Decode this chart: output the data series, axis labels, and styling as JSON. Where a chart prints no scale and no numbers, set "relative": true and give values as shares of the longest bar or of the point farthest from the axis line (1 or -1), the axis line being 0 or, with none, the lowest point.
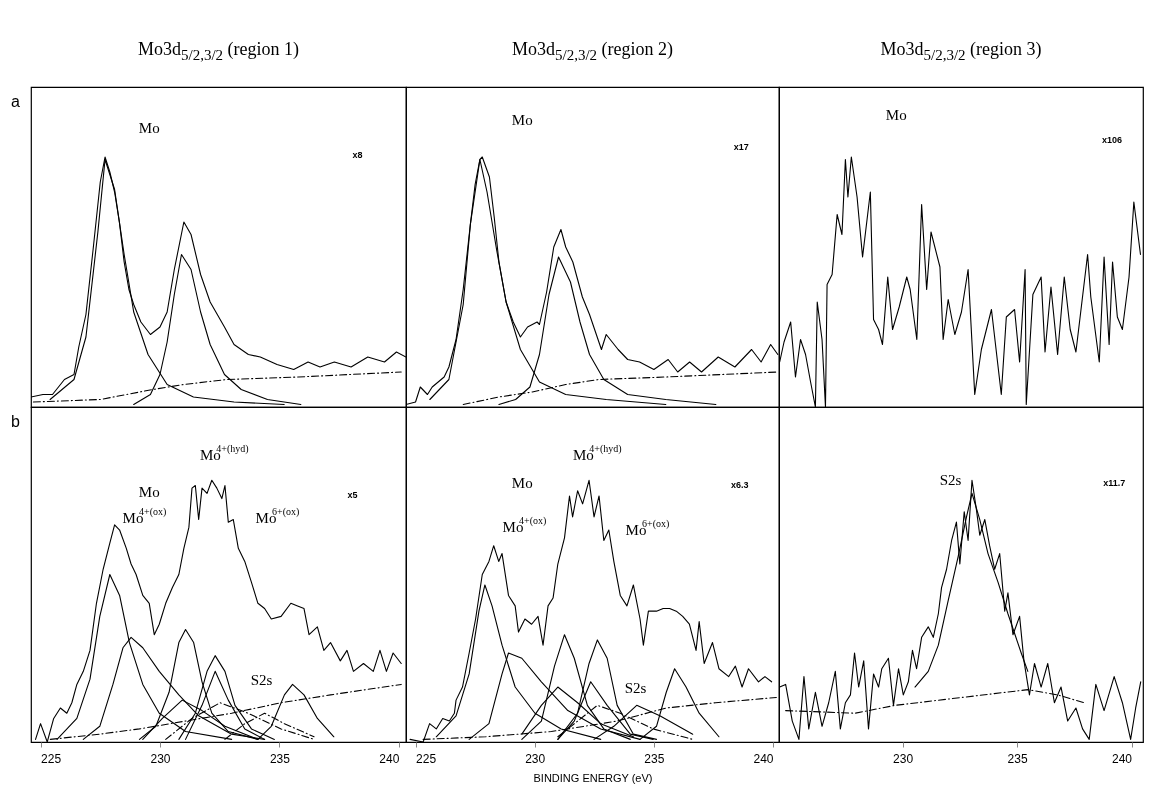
{
  "chart_data": [
    {
      "type": "line",
      "title": "Mo3d$_{5/2,3/2}$ (region 1)",
      "relative": true,
      "xlim": [
        224.6,
        240.3
      ],
      "tick_labels": false,
      "annotations": [
        "a",
        "Mo",
        "x8"
      ],
      "series": [
        {
          "color": "#000000",
          "line_style": "solid",
          "x": [
            224.6,
            225.1,
            225.5,
            226.0,
            226.4,
            226.6,
            226.9,
            227.2,
            227.5,
            227.7,
            227.9,
            228.1,
            228.3,
            228.5,
            228.7,
            228.9,
            229.2,
            229.6,
            230.0,
            230.3,
            230.6,
            231.0,
            231.3,
            231.7,
            232.1,
            232.7,
            233.1,
            233.7,
            234.2,
            234.9,
            235.6,
            236.2,
            236.7,
            237.3,
            238.0,
            238.7,
            239.4,
            239.9,
            240.3
          ],
          "values": [
            0.04,
            0.05,
            0.05,
            0.11,
            0.13,
            0.24,
            0.37,
            0.63,
            0.9,
            1,
            0.94,
            0.86,
            0.74,
            0.58,
            0.47,
            0.41,
            0.34,
            0.29,
            0.32,
            0.38,
            0.55,
            0.74,
            0.69,
            0.53,
            0.42,
            0.32,
            0.25,
            0.21,
            0.2,
            0.17,
            0.15,
            0.18,
            0.16,
            0.18,
            0.16,
            0.2,
            0.18,
            0.22,
            0.2
          ]
        },
        {
          "color": "#000000",
          "line_style": "solid",
          "x": [
            225.4,
            226.4,
            226.9,
            227.4,
            227.7,
            228.1,
            228.5,
            228.9,
            229.5,
            230.3,
            231.4,
            233.1,
            235.2
          ],
          "values": [
            0.03,
            0.11,
            0.28,
            0.7,
            0.99,
            0.87,
            0.61,
            0.38,
            0.21,
            0.09,
            0.04,
            0.02,
            0.01
          ]
        },
        {
          "color": "#000000",
          "line_style": "solid",
          "x": [
            228.9,
            229.6,
            230.0,
            230.3,
            230.6,
            230.9,
            231.3,
            231.7,
            232.1,
            232.7,
            233.4,
            234.5,
            235.9
          ],
          "values": [
            0.01,
            0.05,
            0.13,
            0.26,
            0.45,
            0.61,
            0.55,
            0.38,
            0.25,
            0.13,
            0.07,
            0.03,
            0.01
          ]
        },
        {
          "color": "#000000",
          "line_style": "dashed",
          "x": [
            224.7,
            227.5,
            229.7,
            231.0,
            232.8,
            235.8,
            240.1
          ],
          "values": [
            0.02,
            0.03,
            0.07,
            0.09,
            0.11,
            0.12,
            0.14
          ]
        }
      ]
    },
    {
      "type": "line",
      "title": "Mo3d$_{5/2,3/2}$ (region 2)",
      "relative": true,
      "xlim": [
        224.6,
        240.25
      ],
      "tick_labels": false,
      "annotations": [
        "Mo",
        "x17"
      ],
      "series": [
        {
          "color": "#000000",
          "line_style": "solid",
          "x": [
            224.6,
            225.0,
            225.2,
            225.5,
            225.7,
            226.2,
            226.4,
            226.7,
            227.0,
            227.3,
            227.5,
            227.7,
            227.8,
            228.1,
            228.3,
            228.5,
            228.8,
            229.1,
            229.4,
            229.7,
            230.1,
            230.2,
            230.5,
            230.8,
            231.1,
            231.3,
            231.6,
            232.0,
            232.3,
            232.8,
            233.0,
            233.5,
            233.9,
            234.4,
            235.0,
            235.6,
            236.0,
            236.5,
            237.0,
            237.7,
            238.4,
            239.1,
            239.5,
            239.9,
            240.2
          ],
          "values": [
            0.01,
            0.02,
            0.08,
            0.05,
            0.08,
            0.12,
            0.16,
            0.27,
            0.47,
            0.73,
            0.89,
            0.99,
            1,
            0.92,
            0.76,
            0.58,
            0.42,
            0.34,
            0.28,
            0.32,
            0.34,
            0.33,
            0.46,
            0.64,
            0.71,
            0.64,
            0.58,
            0.44,
            0.37,
            0.23,
            0.29,
            0.23,
            0.19,
            0.18,
            0.15,
            0.19,
            0.14,
            0.18,
            0.14,
            0.2,
            0.16,
            0.23,
            0.18,
            0.25,
            0.21
          ]
        },
        {
          "color": "#000000",
          "line_style": "solid",
          "x": [
            225.6,
            226.4,
            227.0,
            227.3,
            227.7,
            228.0,
            228.4,
            228.8,
            229.4,
            230.2,
            231.3,
            233.0,
            235.5
          ],
          "values": [
            0.03,
            0.11,
            0.41,
            0.73,
            0.99,
            0.86,
            0.63,
            0.42,
            0.23,
            0.1,
            0.05,
            0.03,
            0.01
          ]
        },
        {
          "color": "#000000",
          "line_style": "solid",
          "x": [
            228.5,
            229.2,
            229.8,
            230.2,
            230.6,
            231.0,
            231.5,
            231.9,
            232.3,
            232.9,
            233.9,
            235.5,
            237.6
          ],
          "values": [
            0.01,
            0.03,
            0.08,
            0.21,
            0.45,
            0.6,
            0.5,
            0.34,
            0.21,
            0.11,
            0.05,
            0.03,
            0.01
          ]
        },
        {
          "color": "#000000",
          "line_style": "dashed",
          "x": [
            227.0,
            228.5,
            229.9,
            231.3,
            232.7,
            235.5,
            240.2
          ],
          "values": [
            0.01,
            0.04,
            0.06,
            0.09,
            0.11,
            0.12,
            0.14
          ]
        }
      ]
    },
    {
      "type": "line",
      "title": "Mo3d$_{5/2,3/2}$ (region 3)",
      "relative": true,
      "xlim": [
        224.6,
        240.5
      ],
      "tick_labels": false,
      "annotations": [
        "Mo",
        "x106"
      ],
      "series": [
        {
          "color": "#000000",
          "line_style": "solid",
          "x": [
            224.63,
            224.82,
            225.11,
            225.32,
            225.54,
            225.76,
            225.98,
            226.19,
            226.27,
            226.48,
            226.63,
            226.7,
            226.92,
            227.14,
            227.35,
            227.5,
            227.61,
            227.76,
            228.01,
            228.25,
            228.59,
            228.73,
            228.95,
            229.12,
            229.35,
            229.56,
            229.85,
            230.18,
            230.33,
            230.62,
            230.83,
            231.05,
            231.24,
            231.63,
            231.77,
            231.99,
            232.28,
            232.57,
            232.86,
            233.15,
            233.44,
            233.88,
            234.31,
            234.53,
            234.89,
            235.11,
            235.35,
            235.4,
            235.69,
            236.05,
            236.22,
            236.48,
            236.77,
            237.06,
            237.32,
            237.57,
            238.08,
            238.22,
            238.59,
            238.8,
            239.02,
            239.17,
            239.38,
            239.6,
            239.89,
            240.1,
            240.39
          ],
          "values": [
            0.18,
            0.26,
            0.34,
            0.12,
            0.27,
            0.21,
            0.1,
            0,
            0.42,
            0.27,
            0,
            0.49,
            0.53,
            0.77,
            0.69,
            0.99,
            0.84,
            1,
            0.84,
            0.6,
            0.86,
            0.35,
            0.31,
            0.25,
            0.52,
            0.31,
            0.4,
            0.52,
            0.47,
            0.27,
            0.81,
            0.47,
            0.7,
            0.56,
            0.27,
            0.43,
            0.29,
            0.38,
            0.55,
            0.05,
            0.23,
            0.39,
            0.05,
            0.36,
            0.39,
            0.18,
            0.55,
            0.01,
            0.45,
            0.52,
            0.22,
            0.48,
            0.21,
            0.52,
            0.31,
            0.22,
            0.61,
            0.44,
            0.18,
            0.6,
            0.25,
            0.58,
            0.36,
            0.31,
            0.52,
            0.82,
            0.61
          ]
        }
      ]
    },
    {
      "type": "line",
      "relative": true,
      "xlim": [
        224.6,
        240.3
      ],
      "xticks": [
        225,
        230,
        235,
        240
      ],
      "tick_labels": "x",
      "annotations": [
        "b",
        "Mo$^{4+(hyd)}$",
        "Mo",
        "Mo$^{4+(ox)}$",
        "Mo$^{6+(ox)}$",
        "S2s",
        "x5"
      ],
      "series": [
        {
          "color": "#000000",
          "line_style": "solid",
          "x": [
            224.79,
            225.0,
            225.28,
            225.55,
            225.83,
            226.1,
            226.31,
            226.52,
            226.79,
            227.07,
            227.34,
            227.62,
            227.9,
            228.1,
            228.31,
            228.59,
            228.79,
            229.0,
            229.28,
            229.55,
            229.76,
            229.97,
            230.24,
            230.52,
            230.79,
            231.0,
            231.21,
            231.34,
            231.48,
            231.62,
            231.76,
            231.97,
            232.17,
            232.38,
            232.59,
            232.72,
            232.86,
            233.07,
            233.28,
            233.55,
            233.83,
            234.1,
            234.38,
            234.66,
            235.07,
            235.48,
            235.76,
            236.03,
            236.24,
            236.59,
            236.86,
            237.14,
            237.55,
            237.83,
            238.1,
            238.52,
            238.93,
            239.21,
            239.48,
            239.76,
            240.1
          ],
          "values": [
            0.01,
            0.07,
            0,
            0.09,
            0.13,
            0.11,
            0.15,
            0.22,
            0.27,
            0.35,
            0.53,
            0.66,
            0.76,
            0.83,
            0.81,
            0.74,
            0.68,
            0.64,
            0.56,
            0.53,
            0.41,
            0.45,
            0.53,
            0.59,
            0.64,
            0.74,
            0.82,
            0.97,
            0.98,
            0.85,
            0.97,
            0.95,
            1,
            0.97,
            0.93,
            0.98,
            0.84,
            0.85,
            0.74,
            0.69,
            0.61,
            0.53,
            0.51,
            0.47,
            0.48,
            0.53,
            0.52,
            0.51,
            0.41,
            0.44,
            0.35,
            0.38,
            0.31,
            0.35,
            0.27,
            0.3,
            0.27,
            0.35,
            0.27,
            0.34,
            0.3
          ]
        },
        {
          "color": "#000000",
          "line_style": "solid",
          "x": [
            225.69,
            226.52,
            227.07,
            227.48,
            227.9,
            228.31,
            228.72,
            229.28,
            229.97,
            231.07,
            233.0
          ],
          "values": [
            0.01,
            0.09,
            0.24,
            0.48,
            0.64,
            0.56,
            0.38,
            0.22,
            0.11,
            0.04,
            0.01
          ]
        },
        {
          "color": "#000000",
          "line_style": "solid",
          "x": [
            226.79,
            227.48,
            228.03,
            228.45,
            228.79,
            229.28,
            229.97,
            230.79,
            231.62,
            233.0,
            234.38
          ],
          "values": [
            0.01,
            0.06,
            0.22,
            0.36,
            0.4,
            0.36,
            0.27,
            0.18,
            0.1,
            0.03,
            0.01
          ]
        },
        {
          "color": "#000000",
          "line_style": "solid",
          "x": [
            229.14,
            229.83,
            230.38,
            230.79,
            231.07,
            231.41,
            231.76,
            232.17,
            232.86,
            234.1
          ],
          "values": [
            0.01,
            0.06,
            0.19,
            0.38,
            0.43,
            0.38,
            0.23,
            0.11,
            0.04,
            0.01
          ]
        },
        {
          "color": "#000000",
          "line_style": "solid",
          "x": [
            229.28,
            230.1,
            230.93,
            231.76,
            232.72,
            234.1
          ],
          "values": [
            0.01,
            0.09,
            0.16,
            0.12,
            0.06,
            0.01
          ]
        },
        {
          "color": "#000000",
          "line_style": "solid",
          "x": [
            230.79,
            231.48,
            231.97,
            232.31,
            232.72,
            233.14,
            233.83,
            234.79
          ],
          "values": [
            0.01,
            0.11,
            0.27,
            0.33,
            0.27,
            0.14,
            0.05,
            0.01
          ]
        },
        {
          "color": "#000000",
          "line_style": "solid",
          "x": [
            231.07,
            231.76,
            232.31,
            232.86,
            233.55,
            234.38
          ],
          "values": [
            0.01,
            0.14,
            0.27,
            0.16,
            0.05,
            0.01
          ]
        },
        {
          "color": "#000000",
          "line_style": "dashed",
          "x": [
            230.24,
            231.34,
            232.52,
            233.69,
            235.07,
            236.45
          ],
          "values": [
            0.01,
            0.09,
            0.15,
            0.11,
            0.05,
            0.01
          ]
        },
        {
          "color": "#000000",
          "line_style": "dashed",
          "x": [
            232.72,
            233.55,
            234.38,
            235.21,
            236.45
          ],
          "values": [
            0.01,
            0.07,
            0.11,
            0.07,
            0.02
          ]
        },
        {
          "color": "#000000",
          "line_style": "solid",
          "x": [
            234.1,
            234.66,
            235.21,
            235.55,
            236.03,
            236.59,
            237.28
          ],
          "values": [
            0.01,
            0.06,
            0.18,
            0.22,
            0.18,
            0.09,
            0.02
          ]
        },
        {
          "color": "#000000",
          "line_style": "dashed",
          "x": [
            225.41,
            227.48,
            229.14,
            231.07,
            233.0,
            235.07,
            237.14,
            240.1
          ],
          "values": [
            0.01,
            0.03,
            0.05,
            0.08,
            0.11,
            0.15,
            0.18,
            0.22
          ]
        }
      ]
    },
    {
      "type": "line",
      "relative": true,
      "xlim": [
        224.6,
        240.25
      ],
      "xticks": [
        225,
        230,
        235,
        240
      ],
      "tick_labels": "x",
      "xlabel": "BINDING ENERGY (eV)",
      "annotations": [
        "Mo$^{4+(hyd)}$",
        "Mo",
        "Mo$^{4+(ox)}$",
        "Mo$^{6+(ox)}$",
        "S2s",
        "x6.3"
      ],
      "series": [
        {
          "color": "#000000",
          "line_style": "solid",
          "x": [
            224.77,
            225.32,
            225.59,
            225.87,
            226.14,
            226.42,
            226.63,
            226.7,
            226.97,
            227.25,
            227.52,
            227.8,
            228.08,
            228.28,
            228.49,
            228.63,
            228.9,
            229.18,
            229.32,
            229.59,
            229.87,
            230.14,
            230.35,
            230.56,
            230.77,
            230.97,
            231.25,
            231.46,
            231.59,
            231.8,
            232.01,
            232.28,
            232.49,
            232.7,
            232.9,
            233.11,
            233.32,
            233.59,
            233.87,
            234.14,
            234.42,
            234.56,
            234.77,
            235.11,
            235.39,
            235.66,
            235.94,
            236.21,
            236.49,
            236.77,
            236.9,
            237.11,
            237.46,
            237.73,
            238.14,
            238.42,
            238.7,
            238.97,
            239.39,
            239.66,
            239.94
          ],
          "values": [
            0.01,
            0,
            0.07,
            0.05,
            0.09,
            0.08,
            0.11,
            0.16,
            0.21,
            0.34,
            0.47,
            0.64,
            0.69,
            0.75,
            0.69,
            0.72,
            0.56,
            0.52,
            0.42,
            0.47,
            0.45,
            0.48,
            0.37,
            0.52,
            0.55,
            0.68,
            0.78,
            0.94,
            0.86,
            0.96,
            0.91,
            1,
            0.86,
            0.94,
            0.77,
            0.81,
            0.69,
            0.56,
            0.52,
            0.6,
            0.47,
            0.37,
            0.5,
            0.5,
            0.51,
            0.51,
            0.5,
            0.48,
            0.45,
            0.35,
            0.46,
            0.3,
            0.38,
            0.28,
            0.25,
            0.29,
            0.21,
            0.28,
            0.23,
            0.25,
            0.23
          ]
        },
        {
          "color": "#000000",
          "line_style": "solid",
          "x": [
            225.87,
            226.7,
            227.25,
            227.66,
            227.91,
            228.21,
            228.63,
            229.18,
            230.01,
            231.11,
            232.77
          ],
          "values": [
            0.02,
            0.1,
            0.26,
            0.5,
            0.6,
            0.52,
            0.37,
            0.21,
            0.11,
            0.05,
            0.01
          ]
        },
        {
          "color": "#000000",
          "line_style": "solid",
          "x": [
            227.25,
            228.08,
            228.63,
            228.9,
            229.46,
            230.28,
            231.39,
            232.77,
            234.42
          ],
          "values": [
            0.01,
            0.07,
            0.26,
            0.34,
            0.32,
            0.23,
            0.12,
            0.05,
            0.01
          ]
        },
        {
          "color": "#000000",
          "line_style": "solid",
          "x": [
            229.46,
            230.28,
            230.83,
            231.25,
            231.66,
            232.21,
            232.9,
            234.01
          ],
          "values": [
            0.01,
            0.08,
            0.29,
            0.41,
            0.32,
            0.14,
            0.05,
            0.01
          ]
        },
        {
          "color": "#000000",
          "line_style": "solid",
          "x": [
            229.46,
            230.28,
            230.97,
            231.8,
            232.77,
            234.14
          ],
          "values": [
            0.03,
            0.14,
            0.21,
            0.15,
            0.07,
            0.02
          ]
        },
        {
          "color": "#000000",
          "line_style": "solid",
          "x": [
            230.97,
            231.8,
            232.28,
            232.63,
            233.04,
            233.46,
            234.14,
            235.11
          ],
          "values": [
            0.01,
            0.11,
            0.3,
            0.39,
            0.32,
            0.14,
            0.03,
            0.01
          ]
        },
        {
          "color": "#000000",
          "line_style": "solid",
          "x": [
            230.97,
            231.66,
            232.35,
            233.04,
            234.01,
            234.97
          ],
          "values": [
            0.01,
            0.08,
            0.23,
            0.14,
            0.03,
            0.01
          ]
        },
        {
          "color": "#000000",
          "line_style": "dashed",
          "x": [
            230.97,
            231.8,
            232.63,
            233.59,
            234.97,
            236.63
          ],
          "values": [
            0.02,
            0.08,
            0.14,
            0.11,
            0.05,
            0.01
          ]
        },
        {
          "color": "#000000",
          "line_style": "solid",
          "x": [
            232.49,
            233.32,
            234.28,
            235.25,
            236.63
          ],
          "values": [
            0.01,
            0.06,
            0.14,
            0.1,
            0.03
          ]
        },
        {
          "color": "#000000",
          "line_style": "solid",
          "x": [
            234.42,
            235.11,
            235.52,
            235.87,
            236.35,
            236.9,
            237.73
          ],
          "values": [
            0.01,
            0.06,
            0.19,
            0.28,
            0.21,
            0.11,
            0.02
          ]
        },
        {
          "color": "#000000",
          "line_style": "dashed",
          "x": [
            225.32,
            227.94,
            230.7,
            233.46,
            235.52,
            237.59,
            240.14
          ],
          "values": [
            0.01,
            0.02,
            0.04,
            0.08,
            0.13,
            0.15,
            0.17
          ]
        }
      ]
    },
    {
      "type": "line",
      "relative": true,
      "xlim": [
        224.6,
        240.5
      ],
      "xticks": [
        230,
        235,
        240
      ],
      "tick_labels": "x",
      "annotations": [
        "S2s",
        "x11.7"
      ],
      "series": [
        {
          "color": "#000000",
          "line_style": "solid",
          "x": [
            224.63,
            224.89,
            225.18,
            225.47,
            225.69,
            225.9,
            226.19,
            226.48,
            226.77,
            227.06,
            227.28,
            227.5,
            227.72,
            227.9,
            228.08,
            228.3,
            228.51,
            228.73,
            228.95,
            229.09,
            229.38,
            229.6,
            229.82,
            230.03,
            230.25,
            230.43,
            230.61,
            230.83,
            231.12,
            231.34,
            231.56,
            231.7,
            231.92,
            232.14,
            232.35,
            232.5,
            232.69,
            232.86,
            233.03,
            233.22,
            233.37,
            233.59,
            233.8,
            234.02,
            234.24,
            234.46,
            234.6,
            234.82,
            235.11,
            235.3,
            235.54,
            235.76,
            236.05,
            236.34,
            236.63,
            236.92,
            237.21,
            237.57,
            237.86,
            238.15,
            238.44,
            238.8,
            239.24,
            239.6,
            239.96,
            240.18,
            240.4
          ],
          "values": [
            0.21,
            0.22,
            0.08,
            0.01,
            0.25,
            0.05,
            0.19,
            0.06,
            0.15,
            0.27,
            0.05,
            0.15,
            0.18,
            0.34,
            0.21,
            0.31,
            0.05,
            0.26,
            0.21,
            0.28,
            0.32,
            0.14,
            0.28,
            0.18,
            0.23,
            0.35,
            0.28,
            0.4,
            0.44,
            0.4,
            0.49,
            0.59,
            0.66,
            0.77,
            0.84,
            0.68,
            0.88,
            0.77,
            1,
            0.89,
            0.79,
            0.85,
            0.75,
            0.66,
            0.72,
            0.5,
            0.57,
            0.41,
            0.48,
            0.31,
            0.18,
            0.3,
            0.21,
            0.3,
            0.15,
            0.21,
            0.08,
            0.13,
            0.05,
            0.01,
            0.22,
            0.12,
            0.25,
            0.15,
            0.01,
            0.13,
            0.23
          ]
        },
        {
          "color": "#000000",
          "line_style": "solid",
          "x": [
            230.54,
            231.12,
            231.56,
            231.99,
            232.43,
            232.79,
            233.03,
            233.37,
            233.73,
            234.17,
            234.6,
            235.18,
            235.47
          ],
          "values": [
            0.21,
            0.27,
            0.37,
            0.54,
            0.71,
            0.86,
            0.95,
            0.85,
            0.72,
            0.61,
            0.49,
            0.34,
            0.27
          ]
        },
        {
          "color": "#000000",
          "line_style": "dashed",
          "x": [
            224.89,
            227.93,
            229.67,
            235.47,
            236.77,
            237.93
          ],
          "values": [
            0.12,
            0.11,
            0.14,
            0.2,
            0.18,
            0.15
          ]
        }
      ]
    }
  ]
}
